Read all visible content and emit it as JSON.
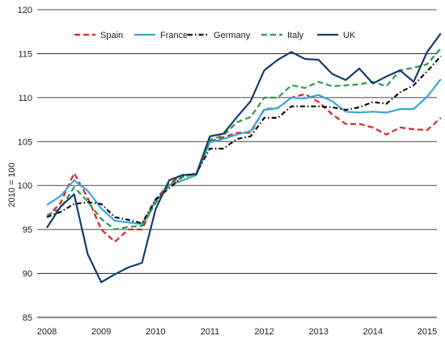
{
  "chart_data": {
    "type": "line",
    "title": "",
    "xlabel": "",
    "ylabel": "2010 = 100",
    "ylim": [
      85,
      120
    ],
    "xlim": [
      2008,
      2015.25
    ],
    "y_ticks": [
      "85",
      "90",
      "95",
      "100",
      "105",
      "110",
      "115",
      "120"
    ],
    "x_ticks": [
      "2008",
      "2009",
      "2010",
      "2011",
      "2012",
      "2013",
      "2014",
      "2015"
    ],
    "grid": "horizontal",
    "legend_position": "top",
    "series": [
      {
        "name": "Spain",
        "color": "#d7262b",
        "dash": "dashed",
        "x": [
          2008,
          2008.25,
          2008.5,
          2008.75,
          2009,
          2009.25,
          2009.5,
          2009.75,
          2010,
          2010.25,
          2010.5,
          2010.75,
          2011,
          2011.25,
          2011.5,
          2011.75,
          2012,
          2012.25,
          2012.5,
          2012.75,
          2013,
          2013.25,
          2013.5,
          2013.75,
          2014,
          2014.25,
          2014.5,
          2014.75,
          2015,
          2015.25
        ],
        "values": [
          96.4,
          98.0,
          101.4,
          98.6,
          95.0,
          93.6,
          95.0,
          95.0,
          98.4,
          100.2,
          101.2,
          101.3,
          105.0,
          105.5,
          106.0,
          106.0,
          108.7,
          108.8,
          110.0,
          110.4,
          109.5,
          108.1,
          107.0,
          107.0,
          106.6,
          105.8,
          106.6,
          106.4,
          106.3,
          107.7
        ]
      },
      {
        "name": "France",
        "color": "#3aa8d8",
        "dash": "solid",
        "x": [
          2008,
          2008.25,
          2008.5,
          2008.75,
          2009,
          2009.25,
          2009.5,
          2009.75,
          2010,
          2010.25,
          2010.5,
          2010.75,
          2011,
          2011.25,
          2011.5,
          2011.75,
          2012,
          2012.25,
          2012.5,
          2012.75,
          2013,
          2013.25,
          2013.5,
          2013.75,
          2014,
          2014.25,
          2014.5,
          2014.75,
          2015,
          2015.25
        ],
        "values": [
          97.8,
          98.8,
          100.6,
          99.4,
          97.4,
          96.0,
          95.8,
          95.6,
          98.2,
          100.0,
          100.6,
          101.2,
          104.9,
          105.3,
          105.8,
          106.2,
          108.6,
          108.8,
          110.0,
          109.9,
          110.3,
          109.6,
          108.4,
          108.3,
          108.4,
          108.3,
          108.7,
          108.7,
          110.1,
          112.1
        ]
      },
      {
        "name": "Germany",
        "color": "#111111",
        "dash": "dashdot",
        "x": [
          2008,
          2008.25,
          2008.5,
          2008.75,
          2009,
          2009.25,
          2009.5,
          2009.75,
          2010,
          2010.25,
          2010.5,
          2010.75,
          2011,
          2011.25,
          2011.5,
          2011.75,
          2012,
          2012.25,
          2012.5,
          2012.75,
          2013,
          2013.25,
          2013.5,
          2013.75,
          2014,
          2014.25,
          2014.5,
          2014.75,
          2015,
          2015.25
        ],
        "values": [
          96.4,
          97.0,
          97.9,
          98.1,
          97.9,
          96.4,
          96.1,
          95.7,
          98.4,
          99.7,
          101.0,
          101.4,
          104.2,
          104.2,
          105.3,
          105.6,
          107.7,
          107.7,
          109.0,
          109.0,
          109.0,
          108.9,
          108.6,
          108.9,
          109.5,
          109.3,
          110.6,
          111.4,
          113.0,
          114.7
        ]
      },
      {
        "name": "Italy",
        "color": "#2f9a45",
        "dash": "dashed",
        "x": [
          2008,
          2008.25,
          2008.5,
          2008.75,
          2009,
          2009.25,
          2009.5,
          2009.75,
          2010,
          2010.25,
          2010.5,
          2010.75,
          2011,
          2011.25,
          2011.5,
          2011.75,
          2012,
          2012.25,
          2012.5,
          2012.75,
          2013,
          2013.25,
          2013.5,
          2013.75,
          2014,
          2014.25,
          2014.5,
          2014.75,
          2015,
          2015.25
        ],
        "values": [
          96.6,
          97.4,
          99.8,
          98.2,
          96.2,
          95.0,
          95.3,
          95.4,
          98.0,
          100.0,
          101.0,
          101.3,
          105.2,
          105.7,
          107.2,
          107.8,
          110.0,
          110.0,
          111.4,
          111.1,
          111.8,
          111.3,
          111.4,
          111.5,
          111.8,
          111.3,
          113.1,
          113.4,
          113.8,
          115.6
        ]
      },
      {
        "name": "UK",
        "color": "#143c6e",
        "dash": "solid",
        "x": [
          2008,
          2008.25,
          2008.5,
          2008.75,
          2009,
          2009.25,
          2009.5,
          2009.75,
          2010,
          2010.25,
          2010.5,
          2010.75,
          2011,
          2011.25,
          2011.5,
          2011.75,
          2012,
          2012.25,
          2012.5,
          2012.75,
          2013,
          2013.25,
          2013.5,
          2013.75,
          2014,
          2014.25,
          2014.5,
          2014.75,
          2015,
          2015.25
        ],
        "values": [
          95.2,
          97.6,
          99.0,
          92.2,
          89.0,
          89.9,
          90.7,
          91.2,
          97.3,
          100.6,
          101.2,
          101.3,
          105.6,
          105.9,
          107.8,
          109.6,
          113.1,
          114.3,
          115.2,
          114.4,
          114.3,
          112.7,
          112.0,
          113.3,
          111.6,
          112.4,
          113.1,
          111.8,
          115.2,
          117.3
        ]
      }
    ]
  }
}
